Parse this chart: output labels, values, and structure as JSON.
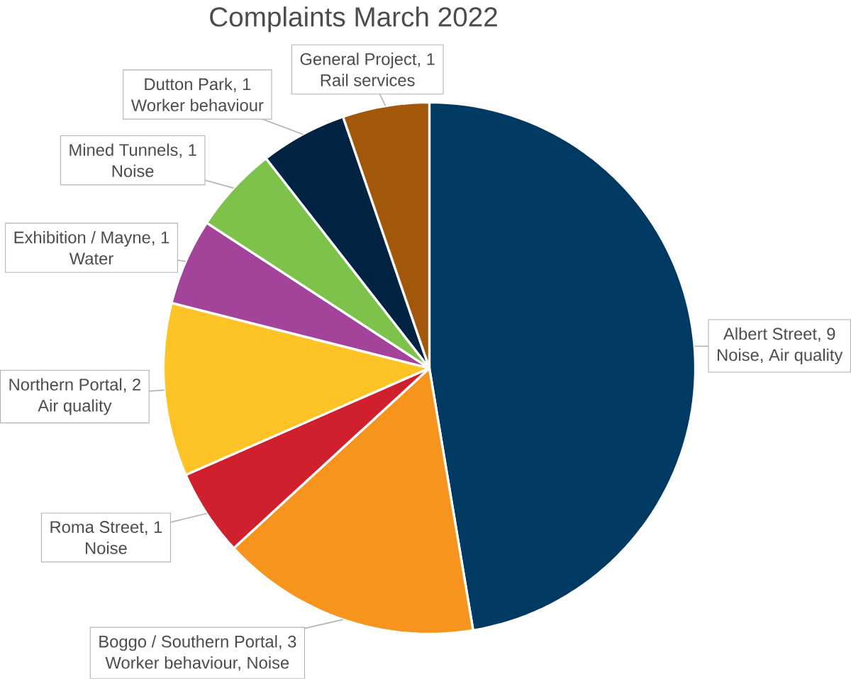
{
  "chart_data": {
    "type": "pie",
    "title": "Complaints March 2022",
    "categories": [
      "Albert Street",
      "Boggo / Southern Portal",
      "Roma Street",
      "Northern Portal",
      "Exhibition / Mayne",
      "Mined Tunnels",
      "Dutton Park",
      "General Project"
    ],
    "values": [
      9,
      3,
      1,
      2,
      1,
      1,
      1,
      1
    ],
    "colors": [
      "#003a63",
      "#f7941d",
      "#d0202e",
      "#fec325",
      "#a3449a",
      "#7dc24b",
      "#002341",
      "#a3570a"
    ],
    "value_labels": [
      ", 9",
      ", 3",
      ", 1",
      ", 2",
      ", 1",
      ", 1",
      ", 1",
      ", 1"
    ],
    "annotations": [
      {
        "text": "Noise, Air quality",
        "x": "Albert Street"
      },
      {
        "text": "Worker behaviour, Noise",
        "x": "Boggo / Southern Portal"
      },
      {
        "text": "Noise",
        "x": "Roma Street"
      },
      {
        "text": "Air quality",
        "x": "Northern Portal"
      },
      {
        "text": "Water",
        "x": "Exhibition / Mayne"
      },
      {
        "text": "Noise",
        "x": "Mined Tunnels"
      },
      {
        "text": "Worker behaviour",
        "x": "Dutton Park"
      },
      {
        "text": "Rail services",
        "x": "General Project"
      }
    ]
  }
}
